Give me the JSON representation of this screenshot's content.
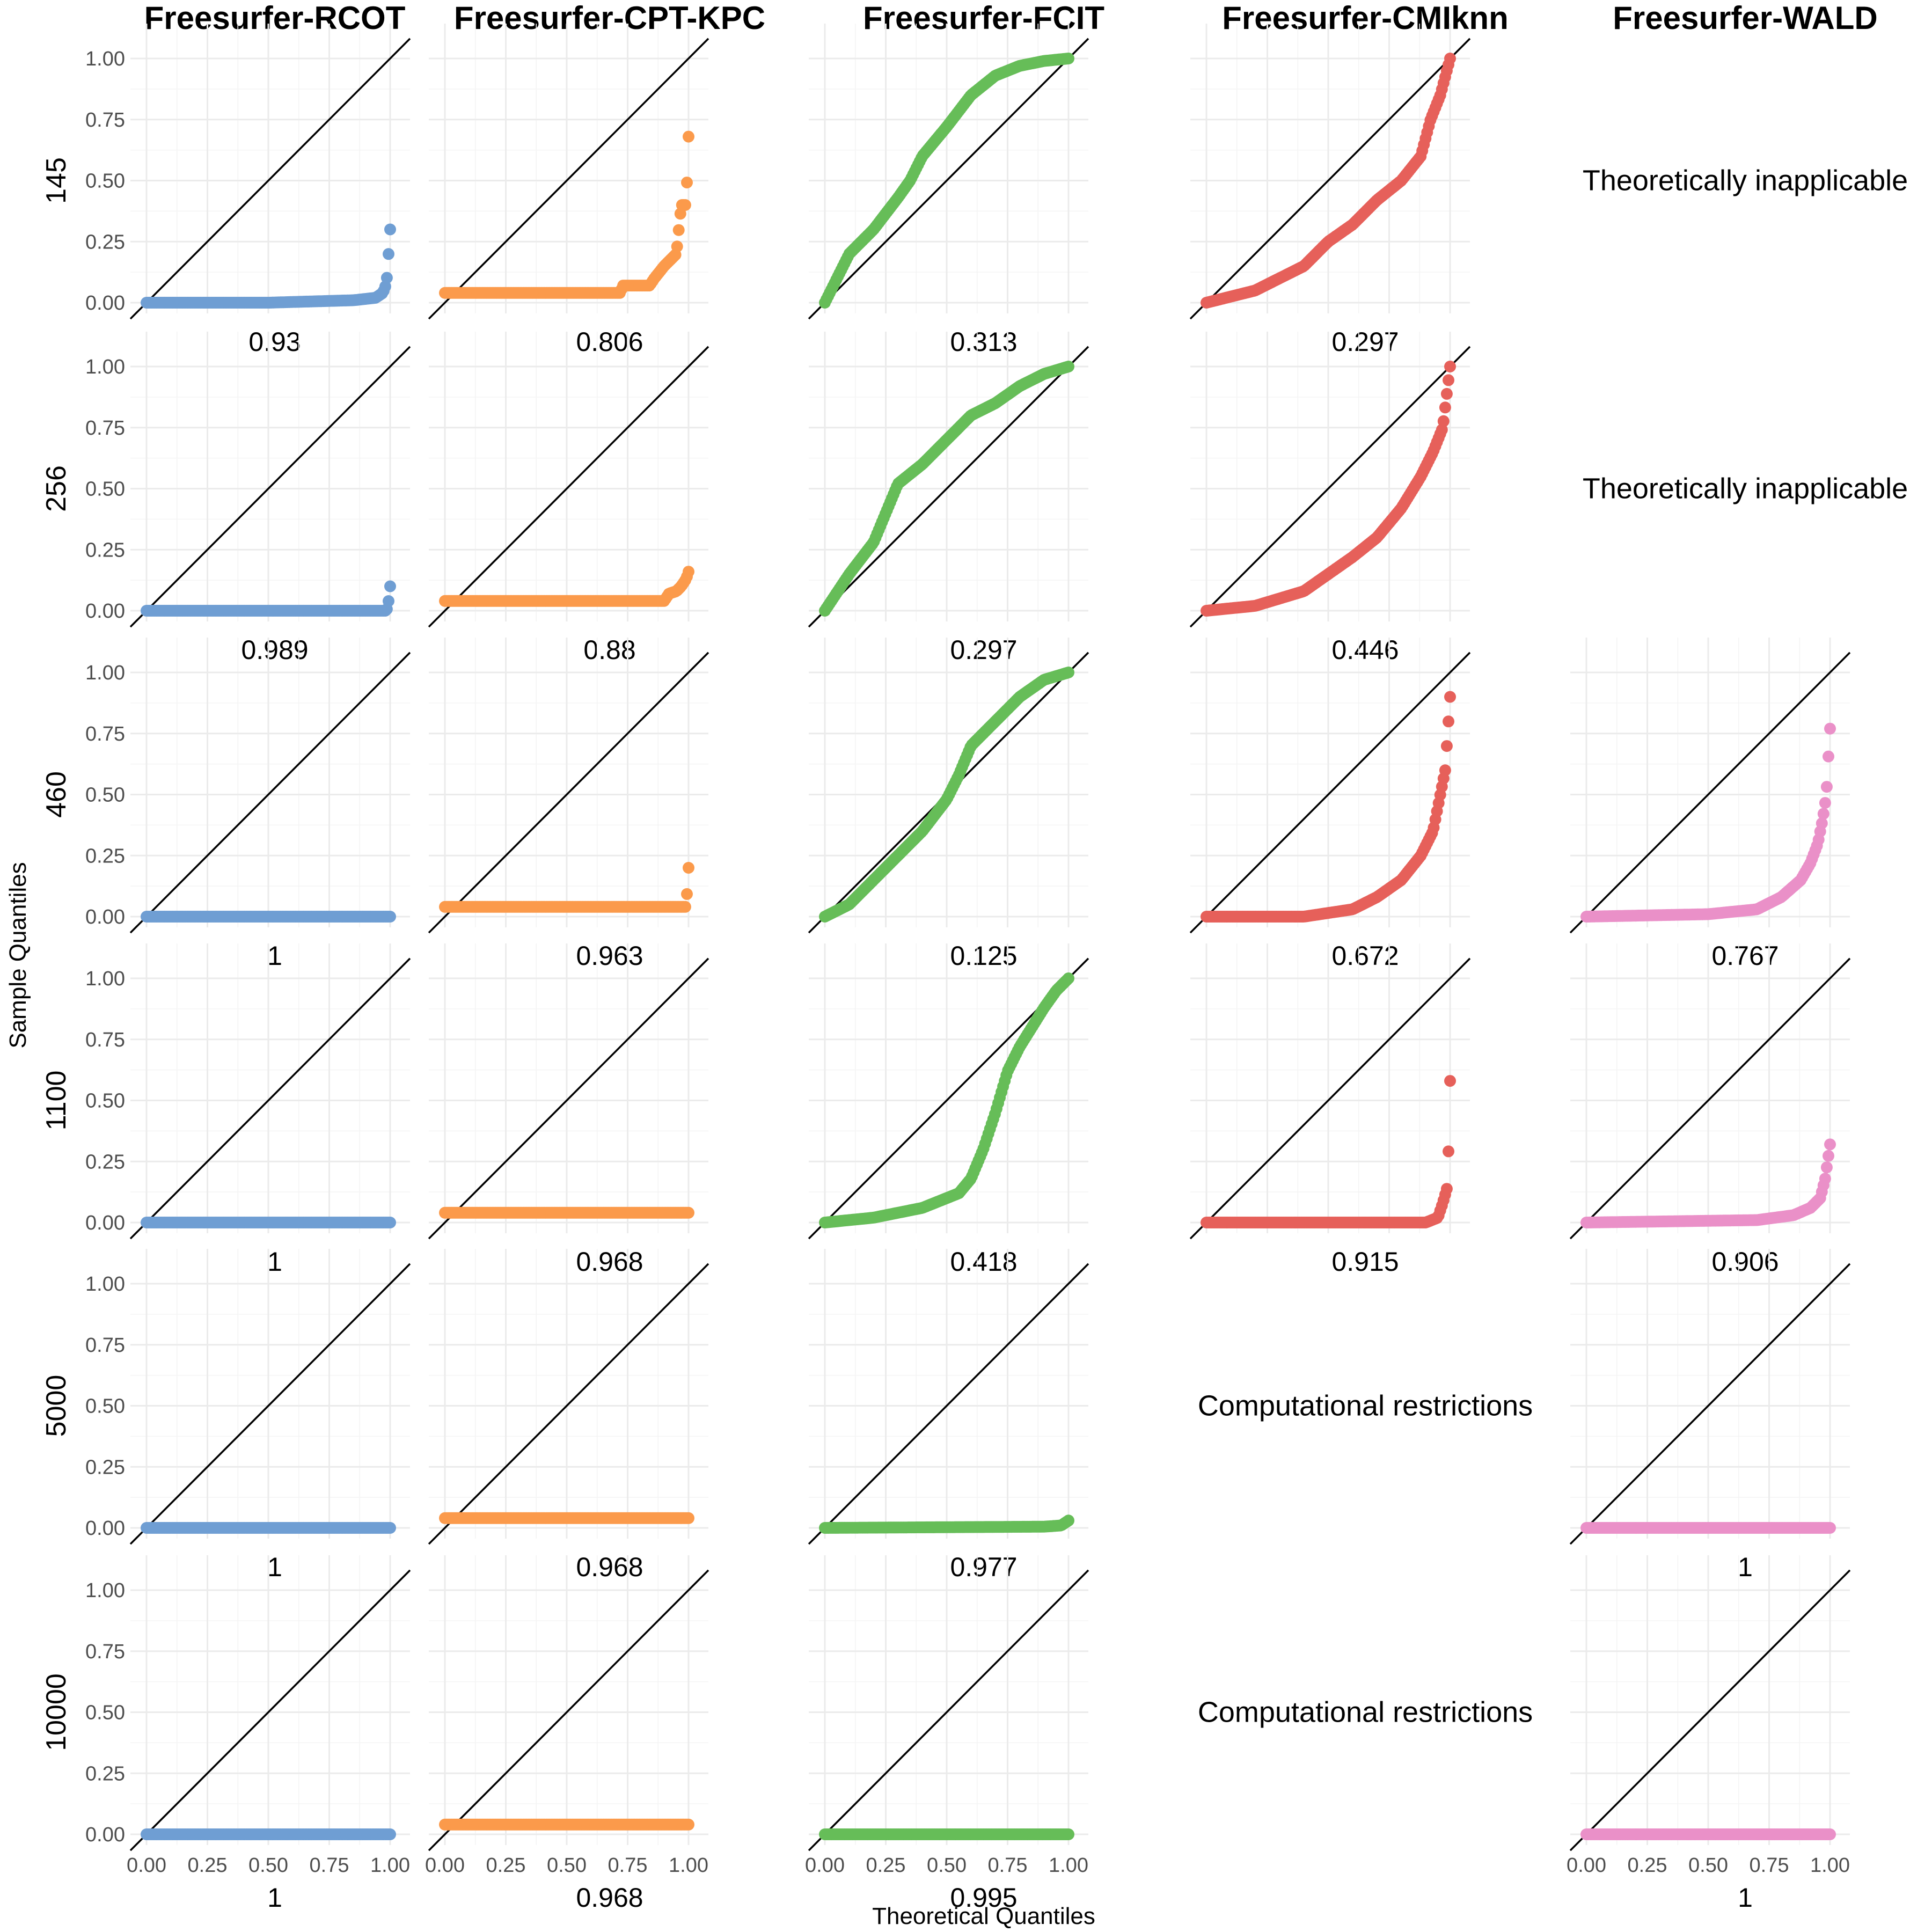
{
  "chart_data": {
    "type": "scatter",
    "title": "",
    "xlabel": "Theoretical Quantiles",
    "ylabel": "Sample Quantiles",
    "xlim": [
      0,
      1
    ],
    "ylim": [
      0,
      1
    ],
    "x_ticks": [
      "0.00",
      "0.25",
      "0.50",
      "0.75",
      "1.00"
    ],
    "y_ticks": [
      "0.00",
      "0.25",
      "0.50",
      "0.75",
      "1.00"
    ],
    "columns": [
      "Freesurfer-RCOT",
      "Freesurfer-CPT-KPC",
      "Freesurfer-FCIT",
      "Freesurfer-CMIknn",
      "Freesurfer-WALD"
    ],
    "rows": [
      "145",
      "256",
      "460",
      "1100",
      "5000",
      "10000"
    ],
    "colors": {
      "Freesurfer-RCOT": "#6f9ed3",
      "Freesurfer-CPT-KPC": "#fb9a4b",
      "Freesurfer-FCIT": "#66bd58",
      "Freesurfer-CMIknn": "#e6605a",
      "Freesurfer-WALD": "#ea90c8"
    },
    "panels": [
      {
        "row": "145",
        "col": "Freesurfer-RCOT",
        "p_value": "0.93",
        "curve": [
          [
            0,
            0
          ],
          [
            0.5,
            0
          ],
          [
            0.85,
            0.01
          ],
          [
            0.94,
            0.02
          ],
          [
            0.97,
            0.04
          ],
          [
            0.985,
            0.08
          ],
          [
            0.99,
            0.15
          ],
          [
            1,
            0.3
          ]
        ]
      },
      {
        "row": "145",
        "col": "Freesurfer-CPT-KPC",
        "p_value": "0.806",
        "curve": [
          [
            0,
            0.04
          ],
          [
            0.72,
            0.04
          ],
          [
            0.73,
            0.07
          ],
          [
            0.84,
            0.07
          ],
          [
            0.86,
            0.1
          ],
          [
            0.9,
            0.15
          ],
          [
            0.95,
            0.2
          ],
          [
            0.97,
            0.4
          ],
          [
            0.99,
            0.4
          ],
          [
            1,
            0.68
          ]
        ]
      },
      {
        "row": "145",
        "col": "Freesurfer-FCIT",
        "p_value": "0.313",
        "curve": [
          [
            0,
            0
          ],
          [
            0.05,
            0.1
          ],
          [
            0.1,
            0.2
          ],
          [
            0.2,
            0.3
          ],
          [
            0.3,
            0.43
          ],
          [
            0.35,
            0.5
          ],
          [
            0.4,
            0.6
          ],
          [
            0.5,
            0.72
          ],
          [
            0.6,
            0.85
          ],
          [
            0.7,
            0.93
          ],
          [
            0.8,
            0.97
          ],
          [
            0.9,
            0.99
          ],
          [
            1,
            1
          ]
        ]
      },
      {
        "row": "145",
        "col": "Freesurfer-CMIknn",
        "p_value": "0.297",
        "curve": [
          [
            0,
            0
          ],
          [
            0.2,
            0.05
          ],
          [
            0.4,
            0.15
          ],
          [
            0.5,
            0.25
          ],
          [
            0.6,
            0.32
          ],
          [
            0.7,
            0.42
          ],
          [
            0.8,
            0.5
          ],
          [
            0.88,
            0.6
          ],
          [
            0.92,
            0.75
          ],
          [
            0.96,
            0.85
          ],
          [
            1,
            1
          ]
        ]
      },
      {
        "row": "145",
        "col": "Freesurfer-WALD",
        "message": "Theoretically inapplicable"
      },
      {
        "row": "256",
        "col": "Freesurfer-RCOT",
        "p_value": "0.989",
        "curve": [
          [
            0,
            0
          ],
          [
            0.98,
            0
          ],
          [
            0.99,
            0.01
          ],
          [
            1,
            0.1
          ]
        ]
      },
      {
        "row": "256",
        "col": "Freesurfer-CPT-KPC",
        "p_value": "0.88",
        "curve": [
          [
            0,
            0.04
          ],
          [
            0.9,
            0.04
          ],
          [
            0.92,
            0.07
          ],
          [
            0.95,
            0.08
          ],
          [
            0.97,
            0.1
          ],
          [
            0.99,
            0.13
          ],
          [
            1,
            0.16
          ]
        ]
      },
      {
        "row": "256",
        "col": "Freesurfer-FCIT",
        "p_value": "0.297",
        "curve": [
          [
            0,
            0
          ],
          [
            0.1,
            0.15
          ],
          [
            0.2,
            0.28
          ],
          [
            0.25,
            0.4
          ],
          [
            0.3,
            0.52
          ],
          [
            0.4,
            0.6
          ],
          [
            0.5,
            0.7
          ],
          [
            0.6,
            0.8
          ],
          [
            0.7,
            0.85
          ],
          [
            0.8,
            0.92
          ],
          [
            0.9,
            0.97
          ],
          [
            1,
            1
          ]
        ]
      },
      {
        "row": "256",
        "col": "Freesurfer-CMIknn",
        "p_value": "0.446",
        "curve": [
          [
            0,
            0
          ],
          [
            0.2,
            0.02
          ],
          [
            0.4,
            0.08
          ],
          [
            0.5,
            0.15
          ],
          [
            0.6,
            0.22
          ],
          [
            0.7,
            0.3
          ],
          [
            0.8,
            0.42
          ],
          [
            0.88,
            0.55
          ],
          [
            0.93,
            0.65
          ],
          [
            0.97,
            0.75
          ],
          [
            1,
            1
          ]
        ]
      },
      {
        "row": "256",
        "col": "Freesurfer-WALD",
        "message": "Theoretically inapplicable"
      },
      {
        "row": "460",
        "col": "Freesurfer-RCOT",
        "p_value": "1",
        "curve": [
          [
            0,
            0
          ],
          [
            1,
            0
          ]
        ]
      },
      {
        "row": "460",
        "col": "Freesurfer-CPT-KPC",
        "p_value": "0.963",
        "curve": [
          [
            0,
            0.04
          ],
          [
            0.98,
            0.04
          ],
          [
            0.99,
            0.04
          ],
          [
            1,
            0.2
          ]
        ]
      },
      {
        "row": "460",
        "col": "Freesurfer-FCIT",
        "p_value": "0.125",
        "curve": [
          [
            0,
            0
          ],
          [
            0.1,
            0.05
          ],
          [
            0.2,
            0.15
          ],
          [
            0.3,
            0.25
          ],
          [
            0.4,
            0.35
          ],
          [
            0.5,
            0.48
          ],
          [
            0.55,
            0.58
          ],
          [
            0.6,
            0.7
          ],
          [
            0.7,
            0.8
          ],
          [
            0.8,
            0.9
          ],
          [
            0.9,
            0.97
          ],
          [
            1,
            1
          ]
        ]
      },
      {
        "row": "460",
        "col": "Freesurfer-CMIknn",
        "p_value": "0.672",
        "curve": [
          [
            0,
            0
          ],
          [
            0.4,
            0
          ],
          [
            0.6,
            0.03
          ],
          [
            0.7,
            0.08
          ],
          [
            0.8,
            0.15
          ],
          [
            0.88,
            0.25
          ],
          [
            0.93,
            0.35
          ],
          [
            0.96,
            0.5
          ],
          [
            0.98,
            0.6
          ],
          [
            1,
            0.9
          ]
        ]
      },
      {
        "row": "460",
        "col": "Freesurfer-WALD",
        "p_value": "0.767",
        "curve": [
          [
            0,
            0
          ],
          [
            0.5,
            0.01
          ],
          [
            0.7,
            0.03
          ],
          [
            0.8,
            0.08
          ],
          [
            0.88,
            0.15
          ],
          [
            0.92,
            0.22
          ],
          [
            0.95,
            0.3
          ],
          [
            0.97,
            0.4
          ],
          [
            0.985,
            0.5
          ],
          [
            0.99,
            0.6
          ],
          [
            1,
            0.77
          ]
        ]
      },
      {
        "row": "1100",
        "col": "Freesurfer-RCOT",
        "p_value": "1",
        "curve": [
          [
            0,
            0
          ],
          [
            1,
            0
          ]
        ]
      },
      {
        "row": "1100",
        "col": "Freesurfer-CPT-KPC",
        "p_value": "0.968",
        "curve": [
          [
            0,
            0.04
          ],
          [
            1,
            0.04
          ]
        ]
      },
      {
        "row": "1100",
        "col": "Freesurfer-FCIT",
        "p_value": "0.418",
        "curve": [
          [
            0,
            0
          ],
          [
            0.2,
            0.02
          ],
          [
            0.4,
            0.06
          ],
          [
            0.55,
            0.12
          ],
          [
            0.6,
            0.18
          ],
          [
            0.65,
            0.3
          ],
          [
            0.7,
            0.45
          ],
          [
            0.75,
            0.62
          ],
          [
            0.8,
            0.72
          ],
          [
            0.85,
            0.8
          ],
          [
            0.9,
            0.88
          ],
          [
            0.95,
            0.95
          ],
          [
            1,
            1
          ]
        ]
      },
      {
        "row": "1100",
        "col": "Freesurfer-CMIknn",
        "p_value": "0.915",
        "curve": [
          [
            0,
            0
          ],
          [
            0.9,
            0
          ],
          [
            0.95,
            0.02
          ],
          [
            0.97,
            0.08
          ],
          [
            0.99,
            0.15
          ],
          [
            1,
            0.58
          ]
        ]
      },
      {
        "row": "1100",
        "col": "Freesurfer-WALD",
        "p_value": "0.906",
        "curve": [
          [
            0,
            0
          ],
          [
            0.7,
            0.01
          ],
          [
            0.85,
            0.03
          ],
          [
            0.92,
            0.06
          ],
          [
            0.96,
            0.1
          ],
          [
            0.98,
            0.18
          ],
          [
            1,
            0.32
          ]
        ]
      },
      {
        "row": "5000",
        "col": "Freesurfer-RCOT",
        "p_value": "1",
        "curve": [
          [
            0,
            0
          ],
          [
            1,
            0
          ]
        ]
      },
      {
        "row": "5000",
        "col": "Freesurfer-CPT-KPC",
        "p_value": "0.968",
        "curve": [
          [
            0,
            0.04
          ],
          [
            1,
            0.04
          ]
        ]
      },
      {
        "row": "5000",
        "col": "Freesurfer-FCIT",
        "p_value": "0.977",
        "curve": [
          [
            0,
            0
          ],
          [
            0.9,
            0.005
          ],
          [
            0.97,
            0.01
          ],
          [
            1,
            0.03
          ]
        ]
      },
      {
        "row": "5000",
        "col": "Freesurfer-CMIknn",
        "message": "Computational restrictions"
      },
      {
        "row": "5000",
        "col": "Freesurfer-WALD",
        "p_value": "1",
        "curve": [
          [
            0,
            0
          ],
          [
            1,
            0
          ]
        ]
      },
      {
        "row": "10000",
        "col": "Freesurfer-RCOT",
        "p_value": "1",
        "curve": [
          [
            0,
            0
          ],
          [
            1,
            0
          ]
        ]
      },
      {
        "row": "10000",
        "col": "Freesurfer-CPT-KPC",
        "p_value": "0.968",
        "curve": [
          [
            0,
            0.04
          ],
          [
            1,
            0.04
          ]
        ]
      },
      {
        "row": "10000",
        "col": "Freesurfer-FCIT",
        "p_value": "0.995",
        "curve": [
          [
            0,
            0
          ],
          [
            1,
            0
          ]
        ]
      },
      {
        "row": "10000",
        "col": "Freesurfer-CMIknn",
        "message": "Computational restrictions"
      },
      {
        "row": "10000",
        "col": "Freesurfer-WALD",
        "p_value": "1",
        "curve": [
          [
            0,
            0
          ],
          [
            1,
            0
          ]
        ]
      }
    ]
  }
}
